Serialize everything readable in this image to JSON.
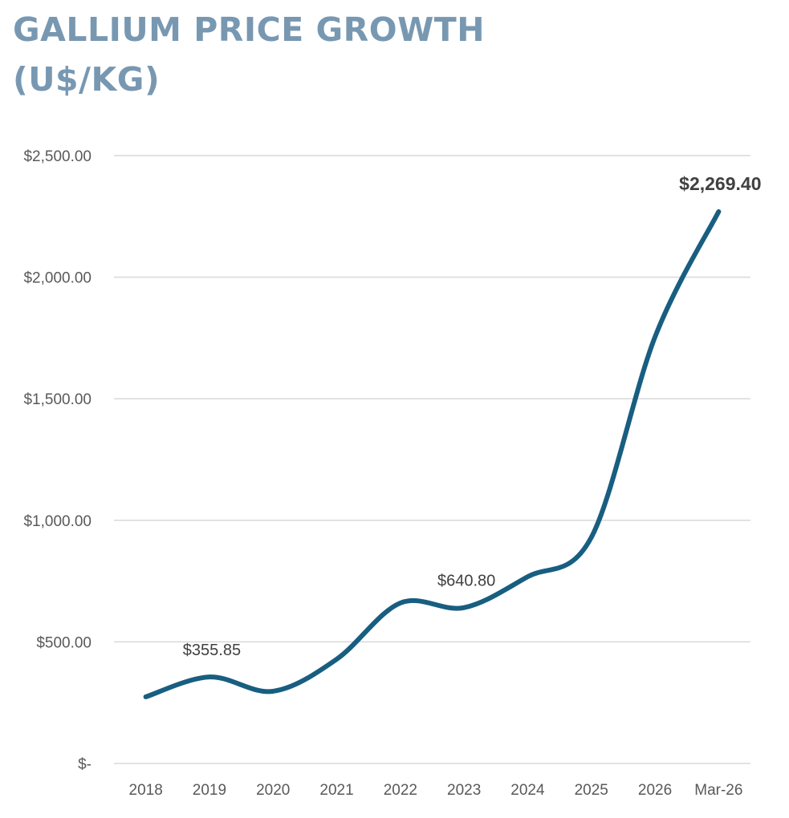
{
  "chart_data": {
    "type": "line",
    "title": "GALLIUM PRICE GROWTH",
    "subtitle": "(U$/KG)",
    "xlabel": "",
    "ylabel": "",
    "categories": [
      "2018",
      "2019",
      "2020",
      "2021",
      "2022",
      "2023",
      "2024",
      "2025",
      "2026",
      "Mar-26"
    ],
    "series": [
      {
        "name": "Gallium price",
        "values": [
          274,
          355.85,
          297,
          429,
          660,
          640.8,
          768,
          930,
          1754,
          2269.4
        ],
        "color": "#185e80",
        "smooth": true
      }
    ],
    "ylim": [
      0,
      2500
    ],
    "yticks": [
      0,
      500,
      1000,
      1500,
      2000,
      2500
    ],
    "ytick_labels": [
      "$-",
      "$500.00",
      "$1,000.00",
      "$1,500.00",
      "$2,000.00",
      "$2,500.00"
    ],
    "data_labels": [
      {
        "index": 1,
        "text": "$355.85",
        "bold": false
      },
      {
        "index": 5,
        "text": "$640.80",
        "bold": false
      },
      {
        "index": 9,
        "text": "$2,269.40",
        "bold": true
      }
    ],
    "grid": true,
    "legend": "none",
    "colors": {
      "title": "#7898b2",
      "line": "#185e80",
      "grid": "#d9d9d9",
      "tick_text": "#595959",
      "label_text": "#404040"
    }
  }
}
